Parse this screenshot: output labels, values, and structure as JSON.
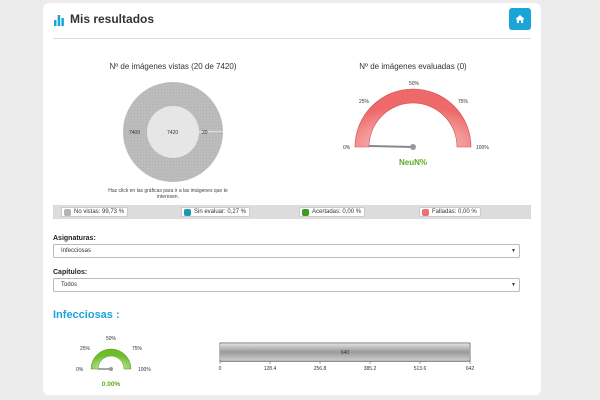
{
  "header": {
    "title": "Mis resultados",
    "title_icon": "bar-chart-icon",
    "home_icon": "home-icon"
  },
  "viewed_chart": {
    "title": "Nº de imágenes vistas (20 de 7420)",
    "outer_label": "7400",
    "inner_label": "7420",
    "slice_label": "20",
    "hint": "Haz click en las gráficas para ir a las imágenes que te interesen."
  },
  "evaluated_gauge": {
    "title": "Nº de imágenes evaluadas (0)",
    "ticks": [
      "0%",
      "25%",
      "50%",
      "75%",
      "100%"
    ],
    "value_label": "NeuN%"
  },
  "legend": [
    {
      "label": "No vistas: 99,73 %",
      "color": "#b4b4b4"
    },
    {
      "label": "Sin evaluar: 0,27 %",
      "color": "#1e9ab0"
    },
    {
      "label": "Acertadas: 0,00 %",
      "color": "#3c9a1e"
    },
    {
      "label": "Falladas: 0,00 %",
      "color": "#f07070"
    }
  ],
  "filters": {
    "asignaturas_label": "Asignaturas:",
    "asignaturas_value": "Infecciosas",
    "capitulos_label": "Capítulos:",
    "capitulos_value": "Todos"
  },
  "section": {
    "title": "Infecciosas :",
    "gauge_ticks": [
      "0%",
      "25%",
      "50%",
      "75%",
      "100%"
    ],
    "gauge_value": "0.00%",
    "bar_value_label": "640",
    "bar_axis": [
      "0",
      "128.4",
      "256.8",
      "385.2",
      "513.6",
      "642"
    ]
  },
  "chart_data": [
    {
      "type": "pie",
      "categories": [
        "No vistas",
        "Sin evaluar"
      ],
      "values": [
        7400,
        20
      ],
      "title": "Nº de imágenes vistas (20 de 7420)"
    },
    {
      "type": "gauge",
      "title": "Nº de imágenes evaluadas (0)",
      "value": 0,
      "range": [
        0,
        100
      ]
    },
    {
      "type": "gauge",
      "value": 0,
      "range": [
        0,
        100
      ]
    },
    {
      "type": "bar",
      "values": [
        640
      ],
      "xlim": [
        0,
        642
      ]
    }
  ]
}
